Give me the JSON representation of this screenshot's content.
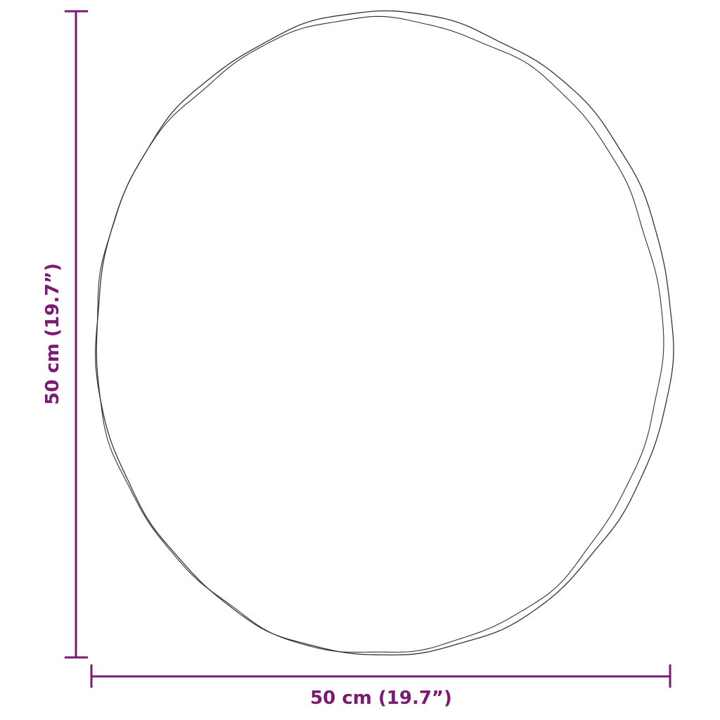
{
  "dimensions": {
    "width_label": "50 cm (19.7”)",
    "height_label": "50 cm (19.7”)"
  },
  "colors": {
    "dimension": "#7a1a73",
    "outline": "#333333"
  }
}
